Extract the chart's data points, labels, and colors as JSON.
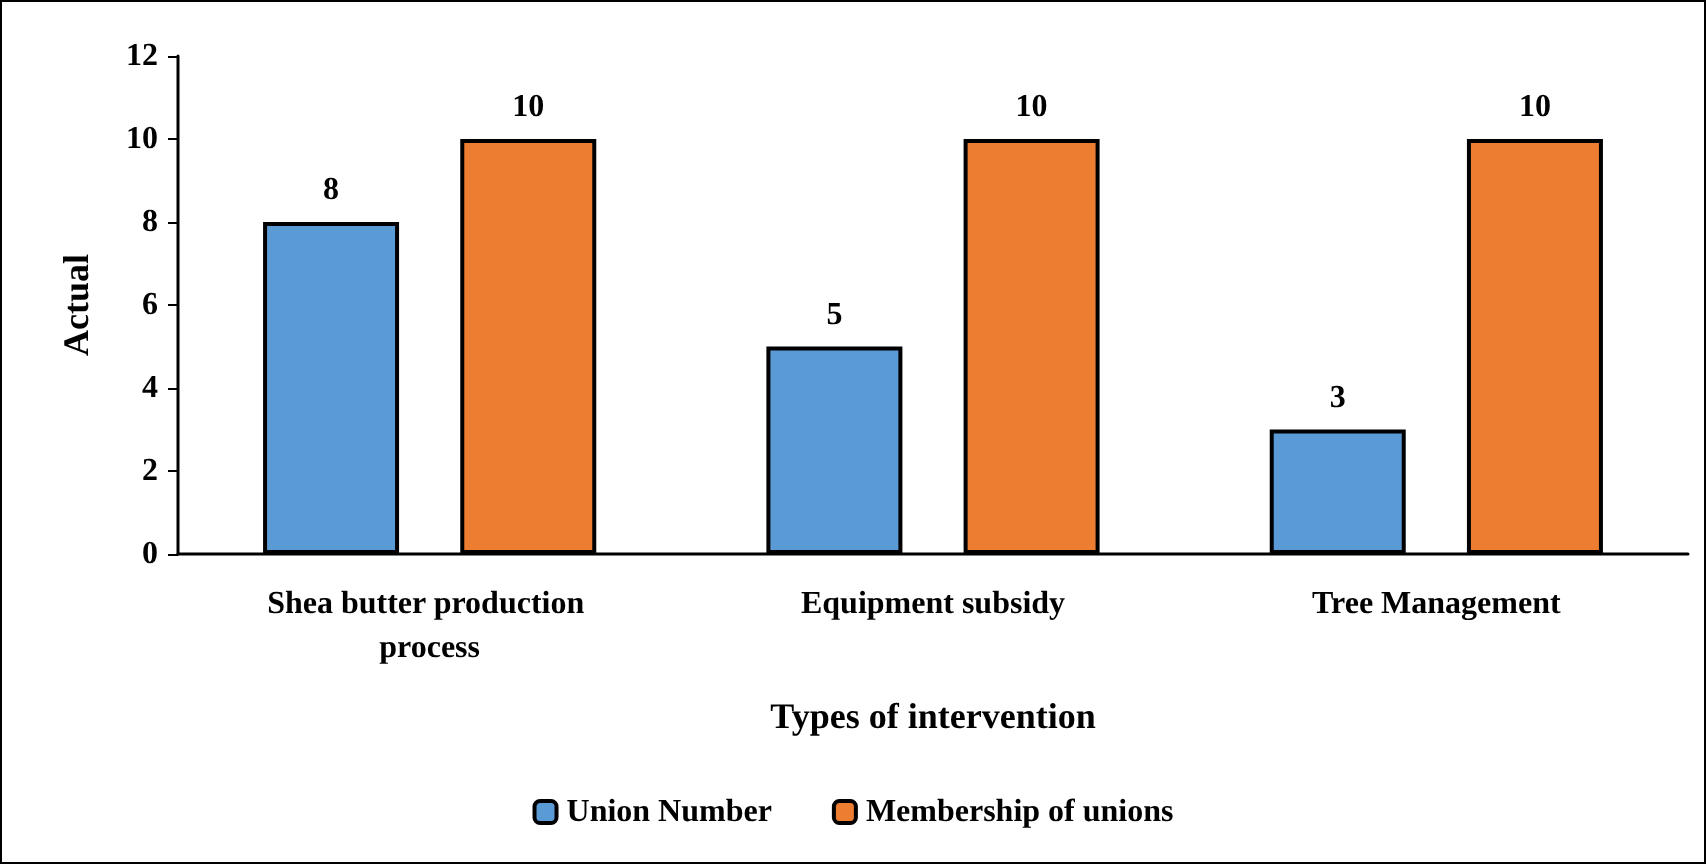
{
  "chart_data": {
    "type": "bar",
    "xlabel": "Types of intervention",
    "ylabel": "Actual",
    "categories": [
      "Shea butter production process",
      "Equipment subsidy",
      "Tree Management"
    ],
    "series": [
      {
        "name": "Union Number",
        "color": "#5b9bd5",
        "values": [
          8,
          5,
          3
        ]
      },
      {
        "name": "Membership of unions",
        "color": "#ed7d31",
        "values": [
          10,
          10,
          10
        ]
      }
    ],
    "ylim": [
      0,
      12
    ],
    "yticks": [
      0,
      2,
      4,
      6,
      8,
      10,
      12
    ],
    "grid": false,
    "legend": "bottom",
    "data_labels": true
  }
}
